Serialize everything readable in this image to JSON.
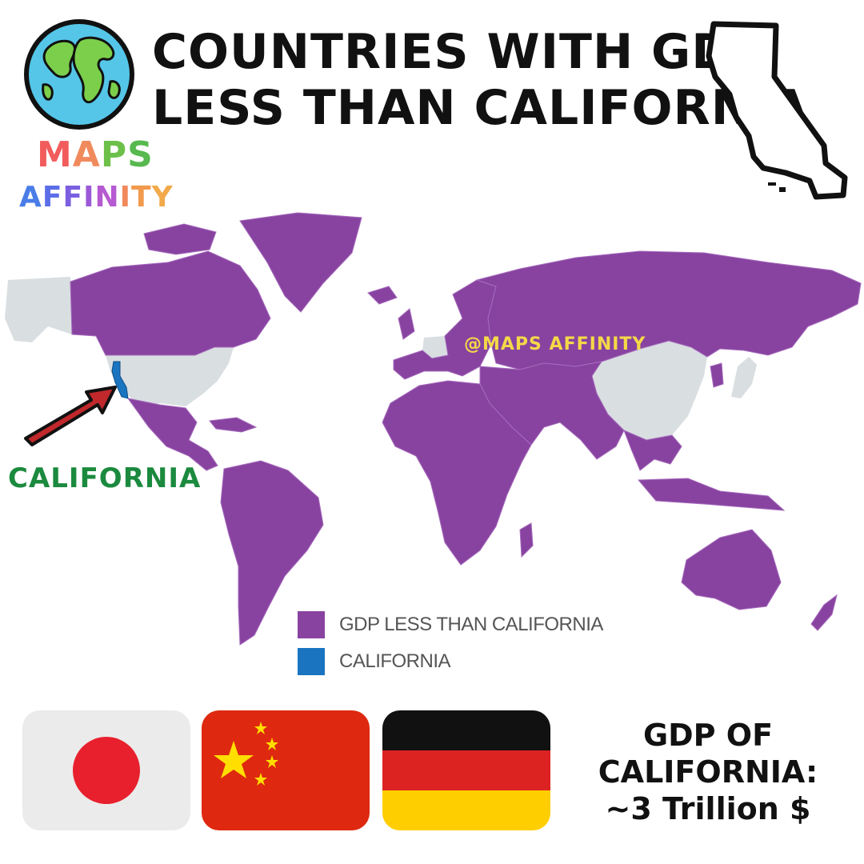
{
  "brand": {
    "line1": [
      {
        "ch": "M",
        "color": "#f25c5c"
      },
      {
        "ch": "A",
        "color": "#f08a5d"
      },
      {
        "ch": "P",
        "color": "#6cc04a"
      },
      {
        "ch": "S",
        "color": "#57b94f"
      }
    ],
    "line2": [
      {
        "ch": "A",
        "color": "#4a7de8"
      },
      {
        "ch": "F",
        "color": "#5b6ee8"
      },
      {
        "ch": "F",
        "color": "#7b5fe0"
      },
      {
        "ch": "I",
        "color": "#9b59d8"
      },
      {
        "ch": "N",
        "color": "#b55ad0"
      },
      {
        "ch": "I",
        "color": "#f08a5d"
      },
      {
        "ch": "T",
        "color": "#f29a4e"
      },
      {
        "ch": "Y",
        "color": "#f2a94a"
      }
    ]
  },
  "title": {
    "line1": "COUNTRIES WITH GDP",
    "line2": "LESS THAN CALIFORNIA"
  },
  "map": {
    "watermark": "@MAPS AFFINITY",
    "california_label": "CALIFORNIA",
    "colors": {
      "gdp_less": "#8843a0",
      "california": "#1a74c0",
      "other": "#d9dee1",
      "borders": "#a66bbd"
    }
  },
  "legend": [
    {
      "label": "GDP LESS THAN CALIFORNIA",
      "color": "#8843a0"
    },
    {
      "label": "CALIFORNIA",
      "color": "#1a74c0"
    }
  ],
  "flags": [
    "japan-flag",
    "china-flag",
    "germany-flag"
  ],
  "gdp": {
    "line1": "GDP OF",
    "line2": "CALIFORNIA:",
    "line3": "~3 Trillion $"
  }
}
